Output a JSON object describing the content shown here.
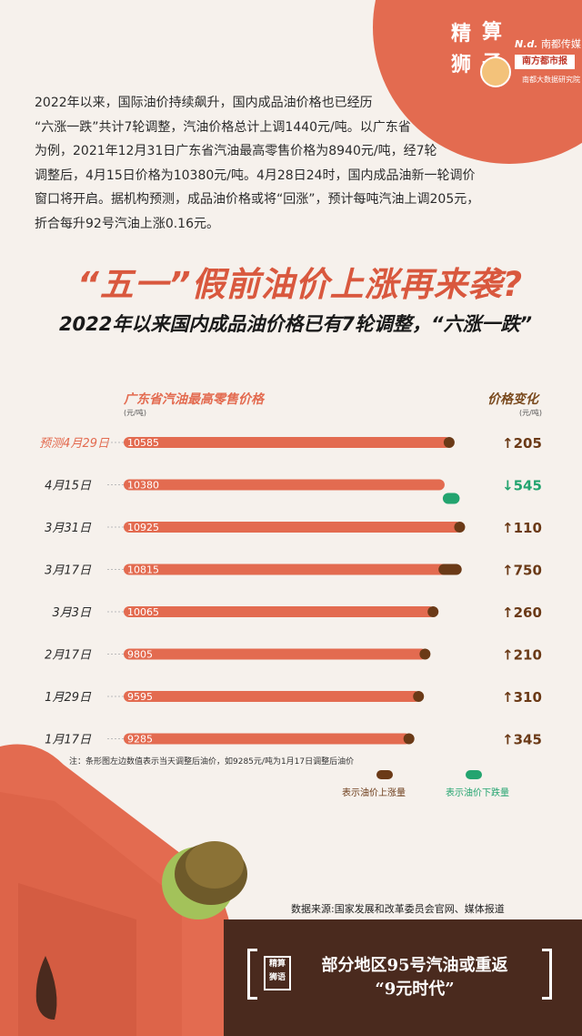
{
  "brand": {
    "badge_chars": [
      "精",
      "算",
      "狮",
      "子"
    ],
    "nd_logo": "N.d.",
    "nd_name": "南都传媒",
    "newspaper": "南方都市报",
    "group": "南都大数据研究院"
  },
  "intro_text": "2022年以来，国际油价持续飙升，国内成品油价格也已经历\n“六涨一跌”共计7轮调整，汽油价格总计上调1440元/吨。以广东省\n为例，2021年12月31日广东省汽油最高零售价格为8940元/吨，经7轮\n调整后，4月15日价格为10380元/吨。4月28日24时，国内成品油新一轮调价\n窗口将开启。据机构预测，成品油价格或将“回涨”，预计每吨汽油上调205元，\n折合每升92号汽油上涨0.16元。",
  "headline": "“五一”假前油价上涨再来袭?",
  "subheadline": "2022年以来国内成品油价格已有7轮调整，“六涨一跌”",
  "chart_data": {
    "type": "bar",
    "orientation": "horizontal",
    "title": "广东省汽油最高零售价格",
    "unit": "(元/吨)",
    "change_title": "价格变化",
    "change_unit": "(元/吨)",
    "categories": [
      "预测4月29日",
      "4月15日",
      "3月31日",
      "3月17日",
      "3月3日",
      "2月17日",
      "1月29日",
      "1月17日"
    ],
    "values": [
      10585,
      10380,
      10925,
      10815,
      10065,
      9805,
      9595,
      9285
    ],
    "changes": [
      205,
      -545,
      110,
      750,
      260,
      210,
      310,
      345
    ],
    "change_labels": [
      "↑205",
      "↓545",
      "↑110",
      "↑750",
      "↑260",
      "↑210",
      "↑310",
      "↑345"
    ],
    "highlight_category": "预测4月29日",
    "colors": {
      "bar": "#e36b50",
      "up": "#6b3a17",
      "down": "#23a46f",
      "highlight_label": "#e36b50"
    },
    "note": "注：条形图左边数值表示当天调整后油价，如9285元/吨为1月17日调整后油价",
    "legend": [
      {
        "label": "表示油价上涨量",
        "color": "#6b3a17"
      },
      {
        "label": "表示油价下跌量",
        "color": "#23a46f"
      }
    ]
  },
  "source": "数据来源:国家发展和改革委员会官网、媒体报道",
  "footer": {
    "seal_top": "精算",
    "seal_bottom": "狮语",
    "line1": "部分地区95号汽油或重返",
    "line2": "“9元时代”"
  }
}
